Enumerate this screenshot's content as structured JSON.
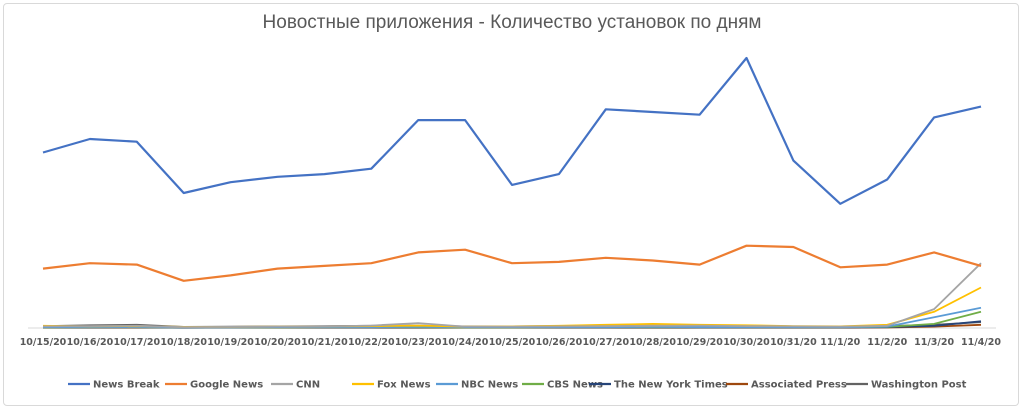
{
  "chart_data": {
    "type": "line",
    "title": "Новостные приложения - Количество установок по дням",
    "xlabel": "",
    "ylabel": "",
    "grid": false,
    "legend_placement": "bottom",
    "ylim": [
      0,
      100
    ],
    "categories": [
      "10/15/20",
      "10/16/20",
      "10/17/20",
      "10/18/20",
      "10/19/20",
      "10/20/20",
      "10/21/20",
      "10/22/20",
      "10/23/20",
      "10/24/20",
      "10/25/20",
      "10/26/20",
      "10/27/20",
      "10/28/20",
      "10/29/20",
      "10/30/20",
      "10/31/20",
      "11/1/20",
      "11/2/20",
      "11/3/20",
      "11/4/20"
    ],
    "series": [
      {
        "name": "News Break",
        "color": "#4472C4",
        "values": [
          65,
          70,
          69,
          50,
          54,
          56,
          57,
          59,
          77,
          77,
          53,
          57,
          81,
          80,
          79,
          100,
          62,
          46,
          55,
          78,
          82
        ]
      },
      {
        "name": "Google News",
        "color": "#ED7D31",
        "values": [
          22,
          24,
          23.5,
          17.5,
          19.5,
          22,
          23,
          24,
          28,
          29,
          24,
          24.5,
          26,
          25,
          23.5,
          30.5,
          30,
          22.5,
          23.5,
          28,
          23
        ]
      },
      {
        "name": "CNN",
        "color": "#A5A5A5",
        "values": [
          0.6,
          0.7,
          0.8,
          0.3,
          0.4,
          0.5,
          0.6,
          0.9,
          1.8,
          0.5,
          0.5,
          0.6,
          0.7,
          0.8,
          0.9,
          0.7,
          0.6,
          0.5,
          0.8,
          7,
          24
        ]
      },
      {
        "name": "Fox News",
        "color": "#FFC000",
        "values": [
          0.8,
          0.6,
          0.7,
          0.4,
          0.4,
          0.5,
          0.6,
          0.7,
          0.9,
          0.5,
          0.6,
          0.8,
          1.2,
          1.5,
          1.2,
          1,
          0.7,
          0.6,
          1.2,
          6,
          15
        ]
      },
      {
        "name": "NBC News",
        "color": "#5B9BD5",
        "values": [
          0.3,
          0.3,
          0.3,
          0.2,
          0.2,
          0.3,
          0.3,
          0.3,
          0.4,
          0.3,
          0.3,
          0.3,
          0.3,
          0.4,
          0.3,
          0.3,
          0.3,
          0.3,
          0.5,
          4,
          7.5
        ]
      },
      {
        "name": "CBS News",
        "color": "#70AD47",
        "values": [
          0.2,
          0.3,
          0.3,
          0.2,
          0.2,
          0.2,
          0.3,
          0.3,
          0.3,
          0.2,
          0.2,
          0.3,
          0.3,
          0.3,
          0.3,
          0.3,
          0.3,
          0.3,
          0.4,
          1.5,
          6
        ]
      },
      {
        "name": "The New York Times",
        "color": "#264478",
        "values": [
          0.2,
          0.2,
          0.3,
          0.1,
          0.2,
          0.2,
          0.2,
          0.2,
          0.2,
          0.2,
          0.2,
          0.2,
          0.2,
          0.2,
          0.2,
          0.2,
          0.2,
          0.2,
          0.3,
          0.8,
          2.5
        ]
      },
      {
        "name": "Associated Press",
        "color": "#9E480E",
        "values": [
          0.1,
          0.1,
          0.1,
          0.1,
          0.1,
          0.1,
          0.1,
          0.1,
          0.1,
          0.1,
          0.1,
          0.1,
          0.1,
          0.1,
          0.1,
          0.1,
          0.1,
          0.1,
          0.2,
          0.5,
          1.2
        ]
      },
      {
        "name": "Washington Post",
        "color": "#636363",
        "values": [
          0.7,
          1,
          1.2,
          0.4,
          0.5,
          0.6,
          0.7,
          0.8,
          0.9,
          0.6,
          0.6,
          0.7,
          0.8,
          0.9,
          0.8,
          0.7,
          0.6,
          0.6,
          0.7,
          1.2,
          2.2
        ]
      }
    ]
  }
}
